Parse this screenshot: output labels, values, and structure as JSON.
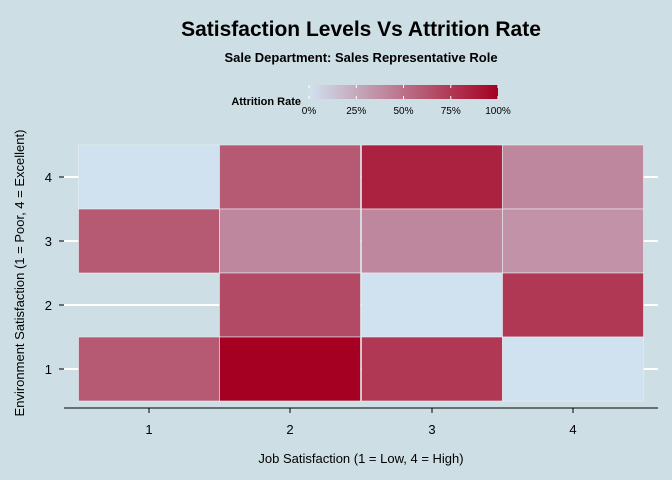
{
  "chart_data": {
    "type": "heatmap",
    "title": "Satisfaction Levels Vs Attrition Rate",
    "subtitle": "Sale Department: Sales Representative Role",
    "xlabel": "Job Satisfaction (1 = Low, 4 = High)",
    "ylabel": "Environment Satisfaction (1 = Poor, 4 = Excellent)",
    "x_categories": [
      "1",
      "2",
      "3",
      "4"
    ],
    "y_categories": [
      "1",
      "2",
      "3",
      "4"
    ],
    "values": [
      {
        "x": "1",
        "y": "4",
        "value": 0
      },
      {
        "x": "2",
        "y": "4",
        "value": 60
      },
      {
        "x": "3",
        "y": "4",
        "value": 85
      },
      {
        "x": "4",
        "y": "4",
        "value": 40
      },
      {
        "x": "1",
        "y": "3",
        "value": 60
      },
      {
        "x": "2",
        "y": "3",
        "value": 40
      },
      {
        "x": "3",
        "y": "3",
        "value": 40
      },
      {
        "x": "4",
        "y": "3",
        "value": 35
      },
      {
        "x": "1",
        "y": "2",
        "value": null
      },
      {
        "x": "2",
        "y": "2",
        "value": 67
      },
      {
        "x": "3",
        "y": "2",
        "value": 0
      },
      {
        "x": "4",
        "y": "2",
        "value": 75
      },
      {
        "x": "1",
        "y": "1",
        "value": 60
      },
      {
        "x": "2",
        "y": "1",
        "value": 100
      },
      {
        "x": "3",
        "y": "1",
        "value": 75
      },
      {
        "x": "4",
        "y": "1",
        "value": 0
      }
    ],
    "legend": {
      "title": "Attrition Rate",
      "ticks": [
        "0%",
        "25%",
        "50%",
        "75%",
        "100%"
      ],
      "range": [
        0,
        100
      ],
      "low_color": "#d0e1f0",
      "high_color": "#a50021",
      "placement": "top"
    },
    "background_color": "#cddee4",
    "grid": true
  }
}
